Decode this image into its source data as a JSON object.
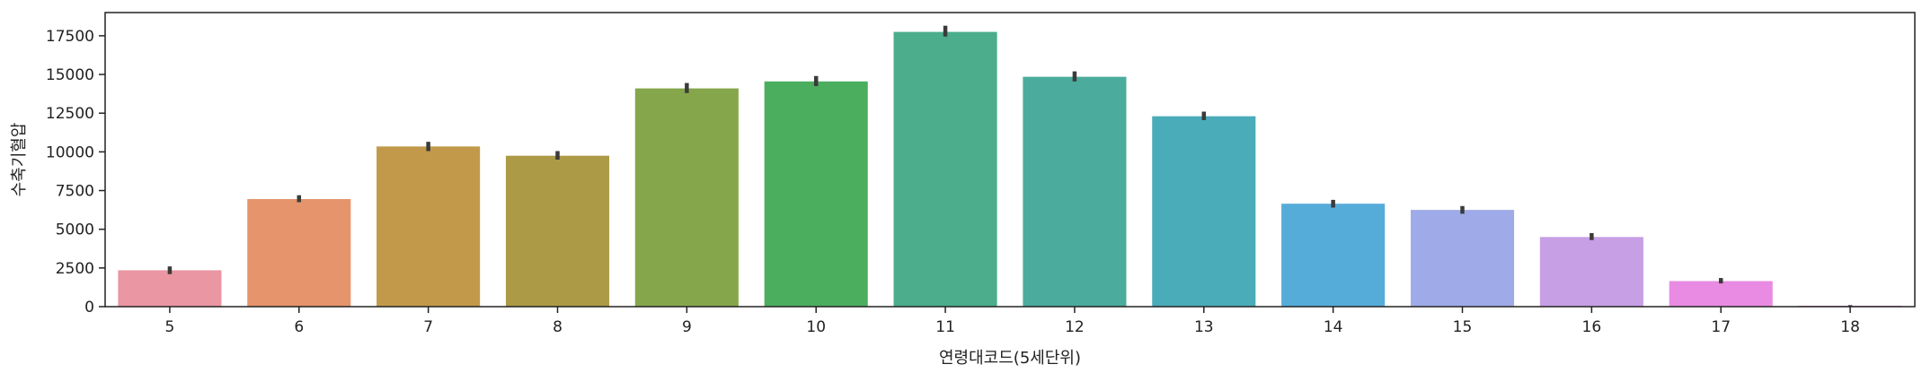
{
  "chart_data": {
    "type": "bar",
    "categories": [
      "5",
      "6",
      "7",
      "8",
      "9",
      "10",
      "11",
      "12",
      "13",
      "14",
      "15",
      "16",
      "17",
      "18"
    ],
    "values": [
      2350,
      6950,
      10350,
      9750,
      14100,
      14550,
      17750,
      14850,
      12300,
      6650,
      6250,
      4500,
      1650,
      60
    ],
    "error_low": [
      2100,
      6750,
      10050,
      9500,
      13800,
      14250,
      17450,
      14550,
      12050,
      6400,
      6000,
      4300,
      1500,
      30
    ],
    "error_high": [
      2600,
      7200,
      10650,
      10050,
      14450,
      14900,
      18150,
      15200,
      12600,
      6900,
      6500,
      4750,
      1850,
      100
    ],
    "colors": [
      "#ea96a3",
      "#e5946b",
      "#c2994a",
      "#ac9a46",
      "#86a64b",
      "#4bae5e",
      "#4bad8b",
      "#4bab9d",
      "#4aabb9",
      "#56acd9",
      "#9fabe8",
      "#c69fe5",
      "#e98be2",
      "#ea8ad0"
    ],
    "title": "",
    "xlabel": "연령대코드(5세단위)",
    "ylabel": "수축기혈압",
    "ylim": [
      0,
      19000
    ],
    "yticks": [
      0,
      2500,
      5000,
      7500,
      10000,
      12500,
      15000,
      17500
    ],
    "grid": false,
    "legend": "none",
    "error_bar_color": "#3b3b3b"
  }
}
